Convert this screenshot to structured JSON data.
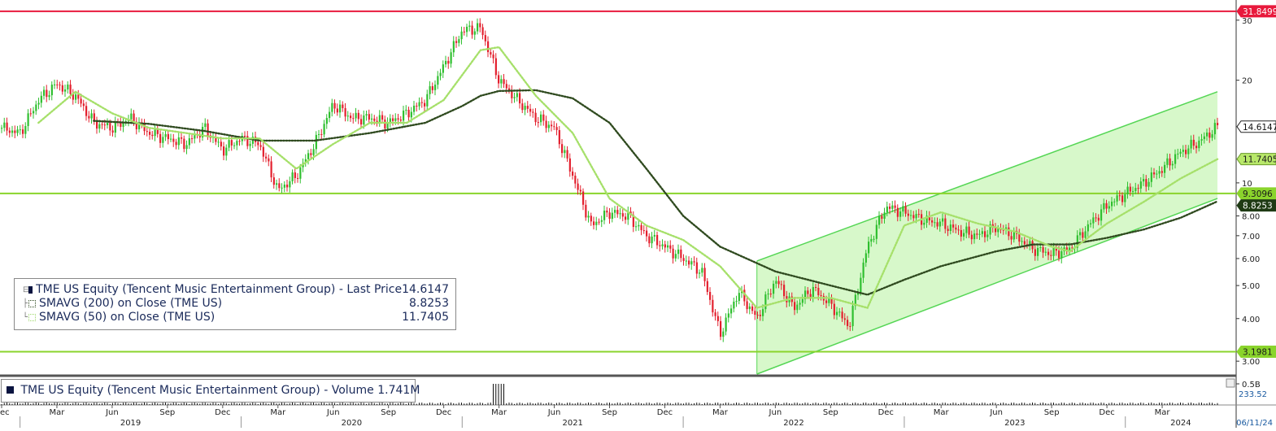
{
  "chart_data": {
    "type": "candlestick",
    "x_axis": {
      "month_ticks": [
        "Dec",
        "Mar",
        "Jun",
        "Sep",
        "Dec",
        "Mar",
        "Jun",
        "Sep",
        "Dec",
        "Mar",
        "Jun",
        "Sep",
        "Dec",
        "Mar",
        "Jun",
        "Sep",
        "Dec",
        "Mar",
        "Jun",
        "Sep",
        "Dec",
        "Mar"
      ],
      "year_labels": [
        "2019",
        "2020",
        "2021",
        "2022",
        "2023",
        "2024"
      ],
      "range": [
        "2018-12",
        "2024-06"
      ],
      "end_date": "06/11/24"
    },
    "y_axis": {
      "scale": "log",
      "ticks": [
        "3.00",
        "4.00",
        "5.00",
        "6.00",
        "7.00",
        "8.00",
        "10",
        "20",
        "30"
      ],
      "tick_values": [
        3,
        4,
        5,
        6,
        7,
        8,
        10,
        20,
        30
      ],
      "range": [
        2.75,
        34
      ]
    },
    "volume_axis": {
      "ticks": [
        "0.5B"
      ],
      "last_value_tag": "233.52"
    },
    "price_series": [
      [
        "2018-12",
        14.5
      ],
      [
        "2019-01",
        14.0
      ],
      [
        "2019-02",
        17.5
      ],
      [
        "2019-03",
        19.5
      ],
      [
        "2019-04",
        18.0
      ],
      [
        "2019-05",
        15.0
      ],
      [
        "2019-06",
        14.5
      ],
      [
        "2019-07",
        15.5
      ],
      [
        "2019-08",
        14.0
      ],
      [
        "2019-09",
        13.5
      ],
      [
        "2019-10",
        13.0
      ],
      [
        "2019-11",
        14.5
      ],
      [
        "2019-12",
        12.5
      ],
      [
        "2020-01",
        13.5
      ],
      [
        "2020-02",
        13.0
      ],
      [
        "2020-03",
        9.5
      ],
      [
        "2020-04",
        10.5
      ],
      [
        "2020-05",
        13.0
      ],
      [
        "2020-06",
        17.0
      ],
      [
        "2020-07",
        15.5
      ],
      [
        "2020-08",
        15.5
      ],
      [
        "2020-09",
        15.0
      ],
      [
        "2020-10",
        16.0
      ],
      [
        "2020-11",
        17.5
      ],
      [
        "2020-12",
        22.0
      ],
      [
        "2021-01",
        28.0
      ],
      [
        "2021-02",
        28.5
      ],
      [
        "2021-03",
        20.0
      ],
      [
        "2021-04",
        17.5
      ],
      [
        "2021-05",
        15.5
      ],
      [
        "2021-06",
        14.5
      ],
      [
        "2021-07",
        10.5
      ],
      [
        "2021-08",
        7.5
      ],
      [
        "2021-09",
        8.2
      ],
      [
        "2021-10",
        8.0
      ],
      [
        "2021-11",
        7.0
      ],
      [
        "2021-12",
        6.5
      ],
      [
        "2022-01",
        6.0
      ],
      [
        "2022-02",
        5.5
      ],
      [
        "2022-03",
        3.6
      ],
      [
        "2022-04",
        4.8
      ],
      [
        "2022-05",
        4.0
      ],
      [
        "2022-06",
        5.2
      ],
      [
        "2022-07",
        4.3
      ],
      [
        "2022-08",
        4.9
      ],
      [
        "2022-09",
        4.4
      ],
      [
        "2022-10",
        3.8
      ],
      [
        "2022-11",
        6.5
      ],
      [
        "2022-12",
        8.5
      ],
      [
        "2023-01",
        8.2
      ],
      [
        "2023-02",
        7.8
      ],
      [
        "2023-03",
        7.6
      ],
      [
        "2023-04",
        7.2
      ],
      [
        "2023-05",
        7.0
      ],
      [
        "2023-06",
        7.4
      ],
      [
        "2023-07",
        7.0
      ],
      [
        "2023-08",
        6.4
      ],
      [
        "2023-09",
        6.2
      ],
      [
        "2023-10",
        6.4
      ],
      [
        "2023-11",
        7.5
      ],
      [
        "2023-12",
        8.6
      ],
      [
        "2024-01",
        9.3
      ],
      [
        "2024-02",
        10.0
      ],
      [
        "2024-03",
        11.0
      ],
      [
        "2024-04",
        12.3
      ],
      [
        "2024-05",
        13.2
      ],
      [
        "2024-06",
        14.6147
      ]
    ],
    "sma200_series": [
      [
        "2019-05",
        15.2
      ],
      [
        "2019-08",
        14.9
      ],
      [
        "2019-11",
        14.2
      ],
      [
        "2020-02",
        13.3
      ],
      [
        "2020-05",
        13.3
      ],
      [
        "2020-08",
        14.0
      ],
      [
        "2020-11",
        15.0
      ],
      [
        "2021-01",
        16.8
      ],
      [
        "2021-02",
        18.0
      ],
      [
        "2021-03",
        18.6
      ],
      [
        "2021-05",
        18.7
      ],
      [
        "2021-07",
        17.7
      ],
      [
        "2021-09",
        15.0
      ],
      [
        "2021-11",
        11.0
      ],
      [
        "2022-01",
        8.0
      ],
      [
        "2022-03",
        6.5
      ],
      [
        "2022-06",
        5.5
      ],
      [
        "2022-09",
        5.0
      ],
      [
        "2022-11",
        4.7
      ],
      [
        "2023-01",
        5.2
      ],
      [
        "2023-03",
        5.7
      ],
      [
        "2023-06",
        6.3
      ],
      [
        "2023-08",
        6.6
      ],
      [
        "2023-10",
        6.6
      ],
      [
        "2023-12",
        6.9
      ],
      [
        "2024-02",
        7.3
      ],
      [
        "2024-04",
        7.9
      ],
      [
        "2024-06",
        8.8253
      ]
    ],
    "sma50_series": [
      [
        "2019-02",
        15.0
      ],
      [
        "2019-04",
        18.5
      ],
      [
        "2019-06",
        16.0
      ],
      [
        "2019-08",
        14.5
      ],
      [
        "2019-10",
        14.0
      ],
      [
        "2019-12",
        13.5
      ],
      [
        "2020-02",
        13.5
      ],
      [
        "2020-04",
        11.0
      ],
      [
        "2020-06",
        13.0
      ],
      [
        "2020-08",
        15.0
      ],
      [
        "2020-10",
        15.0
      ],
      [
        "2020-12",
        17.5
      ],
      [
        "2021-02",
        24.5
      ],
      [
        "2021-03",
        25.0
      ],
      [
        "2021-05",
        18.0
      ],
      [
        "2021-07",
        14.0
      ],
      [
        "2021-09",
        9.0
      ],
      [
        "2021-11",
        7.5
      ],
      [
        "2022-01",
        6.8
      ],
      [
        "2022-03",
        5.7
      ],
      [
        "2022-05",
        4.3
      ],
      [
        "2022-07",
        4.6
      ],
      [
        "2022-09",
        4.6
      ],
      [
        "2022-11",
        4.3
      ],
      [
        "2023-01",
        7.5
      ],
      [
        "2023-03",
        8.2
      ],
      [
        "2023-05",
        7.6
      ],
      [
        "2023-07",
        7.2
      ],
      [
        "2023-09",
        6.5
      ],
      [
        "2023-10",
        6.3
      ],
      [
        "2023-12",
        7.6
      ],
      [
        "2024-02",
        8.8
      ],
      [
        "2024-04",
        10.3
      ],
      [
        "2024-06",
        11.7405
      ]
    ],
    "horizontal_lines": [
      {
        "value": 31.8499,
        "color": "#e8193c",
        "tag": "31.8499"
      },
      {
        "value": 9.3096,
        "color": "#8ad42c",
        "tag": "9.3096"
      },
      {
        "value": 3.1981,
        "color": "#8ad42c",
        "tag": "3.1981"
      }
    ],
    "channel": {
      "lower_start": [
        "2022-05",
        2.75
      ],
      "lower_end": [
        "2024-06",
        9.0
      ],
      "upper_start": [
        "2022-05",
        5.9
      ],
      "upper_end": [
        "2024-06",
        18.5
      ]
    },
    "value_tags": [
      {
        "text": "14.6147",
        "value": 14.6147,
        "bg": "#ffffff",
        "fg": "#111111",
        "border": "#222222"
      },
      {
        "text": "11.7405",
        "value": 11.7405,
        "bg": "#b8e86a",
        "fg": "#1a1a1a",
        "border": "#6a9a2a"
      },
      {
        "text": "8.8253",
        "value": 8.8253,
        "bg": "#1f3a14",
        "fg": "#ffffff",
        "border": "#1f3a14"
      }
    ],
    "legend": {
      "price": {
        "label": "TME US Equity (Tencent Music Entertainment Group) - Last Price",
        "value": "14.6147"
      },
      "sma200": {
        "label": "SMAVG (200)  on Close (TME US)",
        "value": "8.8253"
      },
      "sma50": {
        "label": "SMAVG (50)  on Close (TME US)",
        "value": "11.7405"
      }
    },
    "volume_legend": {
      "label": "TME US Equity (Tencent Music Entertainment Group) - Volume",
      "value": "1.741M"
    },
    "colors": {
      "up": "#2fbf2f",
      "down": "#e3202e",
      "sma200": "#2f4a1f",
      "sma50": "#a6e06a",
      "channel_fill": "#c9f5b8",
      "channel_line": "#55d655",
      "axis_text": "#222222"
    }
  }
}
